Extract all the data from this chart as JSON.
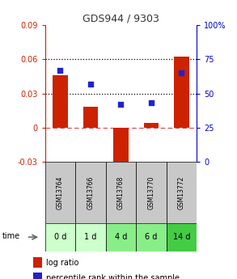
{
  "title": "GDS944 / 9303",
  "samples": [
    "GSM13764",
    "GSM13766",
    "GSM13768",
    "GSM13770",
    "GSM13772"
  ],
  "time_labels": [
    "0 d",
    "1 d",
    "4 d",
    "6 d",
    "14 d"
  ],
  "log_ratio": [
    0.046,
    0.018,
    -0.037,
    0.004,
    0.062
  ],
  "percentile_rank": [
    67,
    57,
    42,
    43,
    65
  ],
  "ylim_left": [
    -0.03,
    0.09
  ],
  "ylim_right": [
    0,
    100
  ],
  "yticks_left": [
    -0.03,
    0,
    0.03,
    0.06,
    0.09
  ],
  "yticks_right": [
    0,
    25,
    50,
    75,
    100
  ],
  "hlines": [
    0.03,
    0.06
  ],
  "bar_color": "#cc2200",
  "dot_color": "#2222cc",
  "title_color": "#333333",
  "left_axis_color": "#cc2200",
  "right_axis_color": "#0000cc",
  "sample_bg": "#c8c8c8",
  "time_bg_colors": [
    "#ccffcc",
    "#ccffcc",
    "#88ee88",
    "#88ee88",
    "#44cc44"
  ],
  "zero_line_color": "#dd4444",
  "dotted_line_color": "#000000"
}
